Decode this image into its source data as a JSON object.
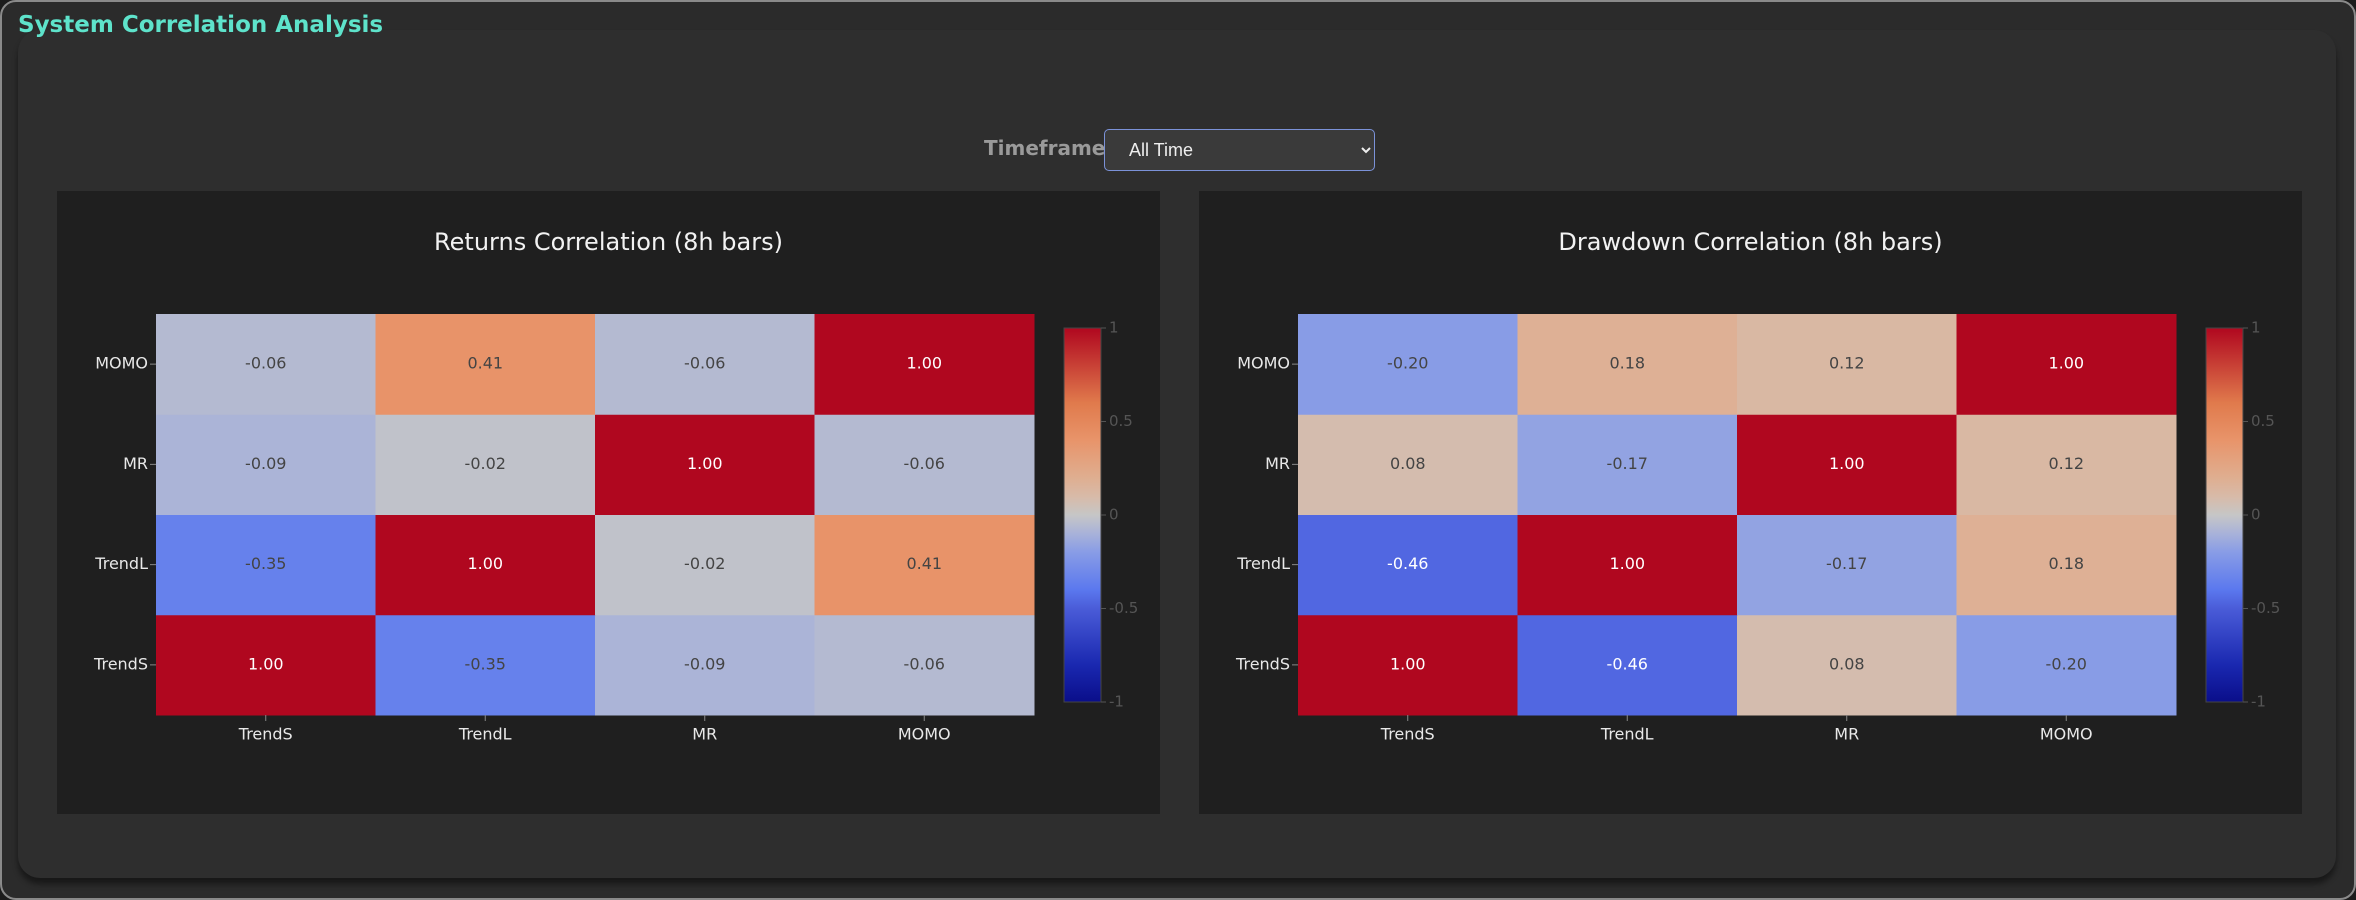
{
  "title": "System Correlation Analysis",
  "controls": {
    "timeframe_label": "Timeframe:",
    "timeframe_value": "All Time"
  },
  "chart_data": [
    {
      "type": "heatmap",
      "title": "Returns Correlation (8h bars)",
      "x": [
        "TrendS",
        "TrendL",
        "MR",
        "MOMO"
      ],
      "y": [
        "TrendS",
        "TrendL",
        "MR",
        "MOMO"
      ],
      "z": [
        [
          1,
          -0.35,
          -0.09,
          -0.06
        ],
        [
          -0.35,
          1,
          -0.02,
          0.41
        ],
        [
          -0.09,
          -0.02,
          1,
          -0.06
        ],
        [
          -0.06,
          0.41,
          -0.06,
          1
        ]
      ],
      "value_labels": [
        [
          "1.00",
          "-0.35",
          "-0.09",
          "-0.06"
        ],
        [
          "-0.35",
          "1.00",
          "-0.02",
          "0.41"
        ],
        [
          "-0.09",
          "-0.02",
          "1.00",
          "-0.06"
        ],
        [
          "-0.06",
          "0.41",
          "-0.06",
          "1.00"
        ]
      ],
      "zlim": [
        -1,
        1
      ],
      "zticks": [
        1,
        0.5,
        0,
        -0.5,
        -1
      ],
      "colorscale": [
        [
          0,
          "#0a0e8a"
        ],
        [
          0.1,
          "#1a28b0"
        ],
        [
          0.25,
          "#4a5cd8"
        ],
        [
          0.3,
          "#5b78ee"
        ],
        [
          0.4,
          "#889ce6"
        ],
        [
          0.45,
          "#a8b2d9"
        ],
        [
          0.5,
          "#c6c6c6"
        ],
        [
          0.55,
          "#d8baa8"
        ],
        [
          0.6,
          "#dfae90"
        ],
        [
          0.7,
          "#e8946a"
        ],
        [
          0.8,
          "#e07a4c"
        ],
        [
          1,
          "#b0071f"
        ]
      ]
    },
    {
      "type": "heatmap",
      "title": "Drawdown Correlation (8h bars)",
      "x": [
        "TrendS",
        "TrendL",
        "MR",
        "MOMO"
      ],
      "y": [
        "TrendS",
        "TrendL",
        "MR",
        "MOMO"
      ],
      "z": [
        [
          1,
          -0.46,
          0.08,
          -0.2
        ],
        [
          -0.46,
          1,
          -0.17,
          0.18
        ],
        [
          0.08,
          -0.17,
          1,
          0.12
        ],
        [
          -0.2,
          0.18,
          0.12,
          1
        ]
      ],
      "value_labels": [
        [
          "1.00",
          "-0.46",
          "0.08",
          "-0.20"
        ],
        [
          "-0.46",
          "1.00",
          "-0.17",
          "0.18"
        ],
        [
          "0.08",
          "-0.17",
          "1.00",
          "0.12"
        ],
        [
          "-0.20",
          "0.18",
          "0.12",
          "1.00"
        ]
      ],
      "zlim": [
        -1,
        1
      ],
      "zticks": [
        1,
        0.5,
        0,
        -0.5,
        -1
      ],
      "colorscale": [
        [
          0,
          "#0a0e8a"
        ],
        [
          0.1,
          "#1a28b0"
        ],
        [
          0.25,
          "#4a5cd8"
        ],
        [
          0.3,
          "#5b78ee"
        ],
        [
          0.4,
          "#889ce6"
        ],
        [
          0.45,
          "#a8b2d9"
        ],
        [
          0.5,
          "#c6c6c6"
        ],
        [
          0.55,
          "#d8baa8"
        ],
        [
          0.6,
          "#dfae90"
        ],
        [
          0.7,
          "#e8946a"
        ],
        [
          0.8,
          "#e07a4c"
        ],
        [
          1,
          "#b0071f"
        ]
      ]
    }
  ]
}
